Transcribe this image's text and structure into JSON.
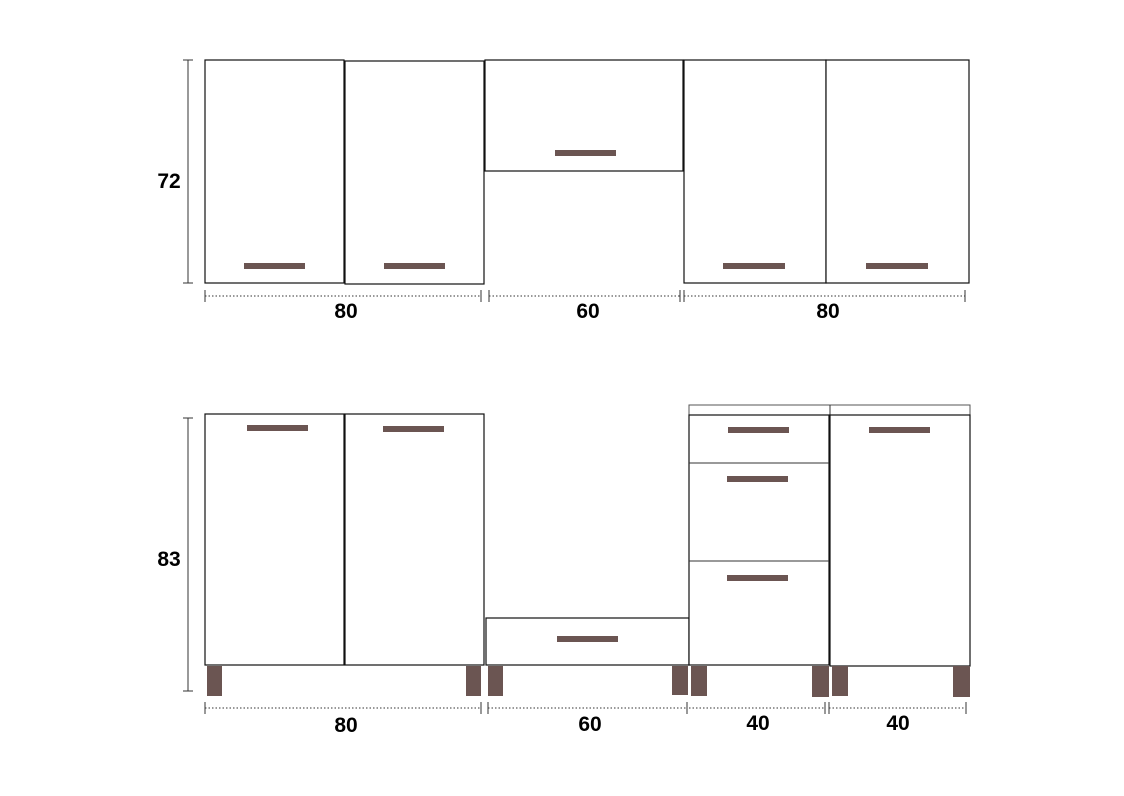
{
  "handle_color": "#6b5552",
  "wall_units": {
    "height_label": "72",
    "width_labels": [
      "80",
      "60",
      "80"
    ]
  },
  "base_units": {
    "height_label": "83",
    "width_labels": [
      "80",
      "60",
      "40",
      "40"
    ]
  }
}
